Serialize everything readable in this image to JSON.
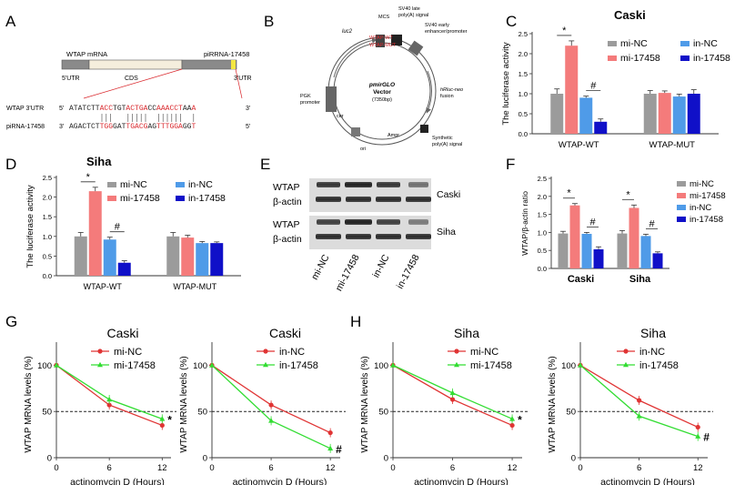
{
  "panels": {
    "A": {
      "letter": "A",
      "mrna_label": "WTAP mRNA",
      "pirna_label": "piRRNA-17458",
      "region_5utr": "5'UTR",
      "region_cds": "CDS",
      "region_3utr": "3'UTR",
      "wtap_prefix": "WTAP  3'UTR",
      "pirna_prefix": "piRNA-17458",
      "wtap_5": "5'",
      "wtap_3": "3'",
      "pirna_3": "3'",
      "pirna_5": "5'",
      "wtap_segments": [
        {
          "t": "ATATCTT",
          "c": "#222"
        },
        {
          "t": "ACC",
          "c": "#d9262b"
        },
        {
          "t": "TGT",
          "c": "#222"
        },
        {
          "t": "ACTGA",
          "c": "#d9262b"
        },
        {
          "t": "CC",
          "c": "#222"
        },
        {
          "t": "AAACCT",
          "c": "#d9262b"
        },
        {
          "t": "AA",
          "c": "#222"
        },
        {
          "t": "A",
          "c": "#d9262b"
        }
      ],
      "pirna_segments": [
        {
          "t": "AGACTCT",
          "c": "#222"
        },
        {
          "t": "TGG",
          "c": "#d9262b"
        },
        {
          "t": "GAT",
          "c": "#222"
        },
        {
          "t": "TGACG",
          "c": "#d9262b"
        },
        {
          "t": "AG",
          "c": "#222"
        },
        {
          "t": "TTTGGA",
          "c": "#d9262b"
        },
        {
          "t": "GG",
          "c": "#222"
        },
        {
          "t": "T",
          "c": "#d9262b"
        }
      ]
    },
    "B": {
      "letter": "B",
      "mcs": "MCS",
      "wt": "WTAP-WT",
      "mut": "WTAP-MUT",
      "sv40_late": "SV40 late",
      "polya_signal": "poly(A) signal",
      "sv40_early": "SV40 early",
      "enhancer": "enhancer/promoter",
      "luc2": "luc2",
      "hrluc": "hRluc-neo",
      "fusion": "fusion",
      "vector1": "pmirGLO",
      "vector2": "Vector",
      "vector_size": "(7350bp)",
      "pgk": "PGK",
      "promoter": "promoter",
      "cer": "cer",
      "synthetic": "Synthetic",
      "synthetic2": "poly(A) signal",
      "ampr": "Ampr",
      "ori": "ori"
    },
    "C": {
      "letter": "C",
      "title": "Caski"
    },
    "D": {
      "letter": "D",
      "title": "Siha"
    },
    "E": {
      "letter": "E",
      "row_wtap": "WTAP",
      "row_actin": "β-actin",
      "cell_caski": "Caski",
      "cell_siha": "Siha",
      "lanes": [
        "mi-NC",
        "mi-17458",
        "in-NC",
        "in-17458"
      ]
    },
    "F": {
      "letter": "F"
    },
    "G": {
      "letter": "G"
    },
    "H": {
      "letter": "H"
    }
  },
  "legend_luc": [
    "mi-NC",
    "mi-17458",
    "in-NC",
    "in-17458"
  ],
  "colors": {
    "mi_nc": "#9b9b9b",
    "mi_17458": "#f47b7b",
    "in_nc": "#4f9be8",
    "in_17458": "#1010c8",
    "red_line": "#e03434",
    "green_line": "#33dd33"
  },
  "chart_data": [
    {
      "id": "C",
      "type": "bar",
      "title": "Caski",
      "ylabel": "The luciferase activity",
      "ylim": [
        0,
        2.5
      ],
      "yticks": [
        "0.0",
        "0.5",
        "1.0",
        "1.5",
        "2.0",
        "2.5"
      ],
      "groups": [
        "WTAP-WT",
        "WTAP-MUT"
      ],
      "series": [
        {
          "name": "mi-NC",
          "values": [
            1.0,
            1.0
          ],
          "errors": [
            0.12,
            0.08
          ]
        },
        {
          "name": "mi-17458",
          "values": [
            2.2,
            1.02
          ],
          "errors": [
            0.12,
            0.05
          ]
        },
        {
          "name": "in-NC",
          "values": [
            0.9,
            0.93
          ],
          "errors": [
            0.04,
            0.06
          ]
        },
        {
          "name": "in-17458",
          "values": [
            0.3,
            1.0
          ],
          "errors": [
            0.07,
            0.1
          ]
        }
      ],
      "sig": [
        {
          "group": 0,
          "pair": [
            0,
            1
          ],
          "mark": "*"
        },
        {
          "group": 0,
          "pair": [
            2,
            3
          ],
          "mark": "#"
        }
      ]
    },
    {
      "id": "D",
      "type": "bar",
      "title": "Siha",
      "ylabel": "The luciferase activity",
      "ylim": [
        0,
        2.5
      ],
      "yticks": [
        "0.0",
        "0.5",
        "1.0",
        "1.5",
        "2.0",
        "2.5"
      ],
      "groups": [
        "WTAP-WT",
        "WTAP-MUT"
      ],
      "series": [
        {
          "name": "mi-NC",
          "values": [
            1.0,
            1.0
          ],
          "errors": [
            0.1,
            0.1
          ]
        },
        {
          "name": "mi-17458",
          "values": [
            2.15,
            0.97
          ],
          "errors": [
            0.1,
            0.06
          ]
        },
        {
          "name": "in-NC",
          "values": [
            0.92,
            0.83
          ],
          "errors": [
            0.06,
            0.04
          ]
        },
        {
          "name": "in-17458",
          "values": [
            0.33,
            0.83
          ],
          "errors": [
            0.05,
            0.03
          ]
        }
      ],
      "sig": [
        {
          "group": 0,
          "pair": [
            0,
            1
          ],
          "mark": "*"
        },
        {
          "group": 0,
          "pair": [
            2,
            3
          ],
          "mark": "#"
        }
      ]
    },
    {
      "id": "F",
      "type": "bar",
      "title": "",
      "ylabel": "WTAP/β-actin ratio",
      "ylim": [
        0,
        2.5
      ],
      "yticks": [
        "0.0",
        "0.5",
        "1.0",
        "1.5",
        "2.0",
        "2.5"
      ],
      "groups": [
        "Caski",
        "Siha"
      ],
      "series": [
        {
          "name": "mi-NC",
          "values": [
            0.97,
            0.97
          ],
          "errors": [
            0.06,
            0.08
          ]
        },
        {
          "name": "mi-17458",
          "values": [
            1.75,
            1.68
          ],
          "errors": [
            0.05,
            0.08
          ]
        },
        {
          "name": "in-NC",
          "values": [
            0.96,
            0.9
          ],
          "errors": [
            0.04,
            0.05
          ]
        },
        {
          "name": "in-17458",
          "values": [
            0.53,
            0.42
          ],
          "errors": [
            0.07,
            0.04
          ]
        }
      ],
      "sig": [
        {
          "group": 0,
          "pair": [
            0,
            1
          ],
          "mark": "*"
        },
        {
          "group": 0,
          "pair": [
            2,
            3
          ],
          "mark": "#"
        },
        {
          "group": 1,
          "pair": [
            0,
            1
          ],
          "mark": "*"
        },
        {
          "group": 1,
          "pair": [
            2,
            3
          ],
          "mark": "#"
        }
      ]
    },
    {
      "id": "G1",
      "type": "line",
      "title": "Caski",
      "xlabel": "actinomycin D (Hours)",
      "ylabel": "WTAP MRNA levels (%)",
      "xlim": [
        0,
        13
      ],
      "ylim": [
        0,
        125
      ],
      "xticks": [
        0,
        6,
        12
      ],
      "yticks": [
        0,
        50,
        100
      ],
      "dashed_y": 50,
      "series": [
        {
          "name": "mi-NC",
          "color": "#e03434",
          "marker": "circle",
          "x": [
            0,
            6,
            12
          ],
          "y": [
            100,
            57,
            35
          ]
        },
        {
          "name": "mi-17458",
          "color": "#33dd33",
          "marker": "triangle",
          "x": [
            0,
            6,
            12
          ],
          "y": [
            100,
            63,
            42
          ]
        }
      ],
      "annotation": "*"
    },
    {
      "id": "G2",
      "type": "line",
      "title": "Caski",
      "xlabel": "actinomycin D (Hours)",
      "ylabel": "WTAP MRNA levels (%)",
      "xlim": [
        0,
        13
      ],
      "ylim": [
        0,
        125
      ],
      "xticks": [
        0,
        6,
        12
      ],
      "yticks": [
        0,
        50,
        100
      ],
      "dashed_y": 50,
      "series": [
        {
          "name": "in-NC",
          "color": "#e03434",
          "marker": "circle",
          "x": [
            0,
            6,
            12
          ],
          "y": [
            100,
            57,
            27
          ]
        },
        {
          "name": "in-17458",
          "color": "#33dd33",
          "marker": "triangle",
          "x": [
            0,
            6,
            12
          ],
          "y": [
            100,
            40,
            10
          ]
        }
      ],
      "annotation": "#"
    },
    {
      "id": "H1",
      "type": "line",
      "title": "Siha",
      "xlabel": "actinomycin D (Hours)",
      "ylabel": "WTAP MRNA levels (%)",
      "xlim": [
        0,
        13
      ],
      "ylim": [
        0,
        125
      ],
      "xticks": [
        0,
        6,
        12
      ],
      "yticks": [
        0,
        50,
        100
      ],
      "dashed_y": 50,
      "series": [
        {
          "name": "mi-NC",
          "color": "#e03434",
          "marker": "circle",
          "x": [
            0,
            6,
            12
          ],
          "y": [
            100,
            63,
            35
          ]
        },
        {
          "name": "mi-17458",
          "color": "#33dd33",
          "marker": "triangle",
          "x": [
            0,
            6,
            12
          ],
          "y": [
            100,
            70,
            42
          ]
        }
      ],
      "annotation": "*"
    },
    {
      "id": "H2",
      "type": "line",
      "title": "Siha",
      "xlabel": "actinomycin D (Hours)",
      "ylabel": "WTAP MRNA levels (%)",
      "xlim": [
        0,
        13
      ],
      "ylim": [
        0,
        125
      ],
      "xticks": [
        0,
        6,
        12
      ],
      "yticks": [
        0,
        50,
        100
      ],
      "dashed_y": 50,
      "series": [
        {
          "name": "in-NC",
          "color": "#e03434",
          "marker": "circle",
          "x": [
            0,
            6,
            12
          ],
          "y": [
            100,
            62,
            33
          ]
        },
        {
          "name": "in-17458",
          "color": "#33dd33",
          "marker": "triangle",
          "x": [
            0,
            6,
            12
          ],
          "y": [
            100,
            45,
            23
          ]
        }
      ],
      "annotation": "#"
    }
  ]
}
